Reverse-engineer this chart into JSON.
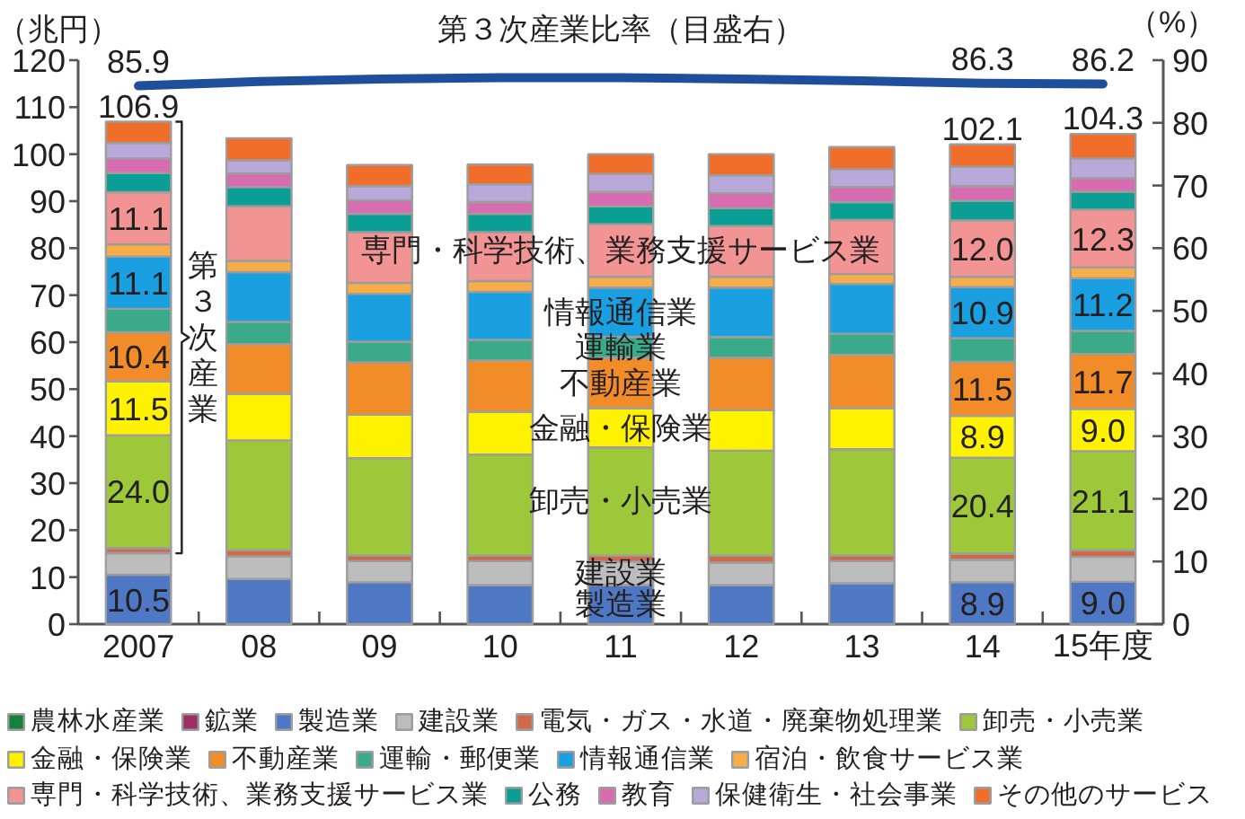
{
  "chart_data": {
    "type": "bar",
    "stacked": true,
    "categories": [
      "2007",
      "08",
      "09",
      "10",
      "11",
      "12",
      "13",
      "14",
      "15年度"
    ],
    "ylim": [
      0,
      120
    ],
    "yticks": [
      0,
      10,
      20,
      30,
      40,
      50,
      60,
      70,
      80,
      90,
      100,
      110,
      120
    ],
    "y2lim": [
      0,
      90
    ],
    "y2ticks": [
      0,
      10,
      20,
      30,
      40,
      50,
      60,
      70,
      80,
      90
    ],
    "ylabel": "（兆円）",
    "y2label": "（%）",
    "legend": "bottom",
    "series": [
      {
        "name": "農林水産業",
        "color": "#16803c",
        "values": [
          null,
          null,
          null,
          null,
          null,
          null,
          null,
          null,
          null
        ]
      },
      {
        "name": "鉱業",
        "color": "#9c2f66",
        "values": [
          null,
          null,
          null,
          null,
          null,
          null,
          null,
          null,
          null
        ]
      },
      {
        "name": "製造業",
        "color": "#4f78c4",
        "values": [
          10.5,
          9.6,
          8.9,
          8.3,
          8.3,
          8.3,
          8.7,
          8.9,
          9.0
        ],
        "value_labels": [
          "10.5",
          null,
          null,
          null,
          null,
          null,
          null,
          "8.9",
          "9.0"
        ]
      },
      {
        "name": "建設業",
        "color": "#bdbdbd",
        "values": [
          4.6,
          4.8,
          4.5,
          5.1,
          5.0,
          4.8,
          4.7,
          4.8,
          5.3
        ]
      },
      {
        "name": "電気・ガス・水道・廃棄物処理業",
        "color": "#d0684a",
        "values": [
          1.1,
          1.3,
          1.2,
          1.2,
          1.3,
          1.5,
          1.2,
          1.3,
          1.4
        ]
      },
      {
        "name": "卸売・小売業",
        "color": "#9cc83a",
        "values": [
          24.0,
          23.4,
          20.7,
          21.5,
          23.0,
          22.3,
          22.6,
          20.4,
          21.1
        ],
        "value_labels": [
          "24.0",
          null,
          null,
          null,
          null,
          null,
          null,
          "20.4",
          "21.1"
        ]
      },
      {
        "name": "金融・保険業",
        "color": "#fff200",
        "values": [
          11.5,
          9.9,
          9.3,
          9.1,
          8.3,
          8.6,
          8.7,
          8.9,
          9.0
        ],
        "value_labels": [
          "11.5",
          null,
          null,
          null,
          null,
          null,
          null,
          "8.9",
          "9.0"
        ]
      },
      {
        "name": "不動産業",
        "color": "#f28c28",
        "values": [
          10.4,
          10.6,
          11.1,
          10.9,
          10.8,
          11.2,
          11.4,
          11.5,
          11.7
        ],
        "value_labels": [
          "10.4",
          null,
          null,
          null,
          null,
          null,
          null,
          "11.5",
          "11.7"
        ]
      },
      {
        "name": "運輸・郵便業",
        "color": "#3aaa88",
        "values": [
          5.0,
          4.7,
          4.4,
          4.4,
          4.4,
          4.4,
          4.5,
          5.0,
          4.9
        ]
      },
      {
        "name": "情報通信業",
        "color": "#1aa0e0",
        "values": [
          11.1,
          10.6,
          10.2,
          10.2,
          10.5,
          10.5,
          10.6,
          10.9,
          11.2
        ],
        "value_labels": [
          "11.1",
          null,
          null,
          null,
          null,
          null,
          null,
          "10.9",
          "11.2"
        ]
      },
      {
        "name": "宿泊・飲食サービス業",
        "color": "#f7ae4a",
        "values": [
          2.6,
          2.4,
          2.3,
          2.3,
          2.3,
          2.3,
          2.1,
          2.2,
          2.3
        ]
      },
      {
        "name": "専門・科学技術、業務支援サービス業",
        "color": "#f29494",
        "values": [
          11.1,
          11.6,
          10.8,
          10.4,
          11.2,
          10.8,
          11.5,
          12.0,
          12.3
        ],
        "value_labels": [
          "11.1",
          null,
          null,
          null,
          null,
          null,
          null,
          "12.0",
          "12.3"
        ]
      },
      {
        "name": "公務",
        "color": "#0a9e94",
        "values": [
          4.1,
          4.1,
          3.9,
          3.9,
          3.8,
          3.8,
          3.8,
          4.2,
          3.8
        ]
      },
      {
        "name": "教育",
        "color": "#d86cb0",
        "values": [
          3.1,
          2.9,
          2.9,
          2.5,
          3.1,
          3.2,
          3.2,
          3.1,
          2.9
        ]
      },
      {
        "name": "保健衛生・社会事業",
        "color": "#b9a9da",
        "values": [
          3.3,
          2.8,
          3.0,
          3.8,
          3.8,
          3.8,
          3.8,
          4.1,
          4.2
        ]
      },
      {
        "name": "その他のサービス",
        "color": "#f06e2a",
        "values": [
          4.5,
          4.7,
          4.5,
          4.2,
          4.2,
          4.5,
          4.7,
          4.8,
          5.2
        ]
      },
      {
        "name": "第３次産業比率（目盛右）",
        "type": "line",
        "axis": "y2",
        "color": "#1f4e9c",
        "values": [
          85.9,
          86.6,
          87.0,
          87.2,
          87.2,
          87.0,
          86.7,
          86.3,
          86.2
        ],
        "value_labels": [
          "85.9",
          null,
          null,
          null,
          null,
          null,
          null,
          "86.3",
          "86.2"
        ]
      }
    ],
    "totals": [
      "106.9",
      null,
      null,
      null,
      null,
      null,
      null,
      "102.1",
      "104.3"
    ],
    "annotations": [
      "第３次産業",
      {
        "text": "専門・科学技術、業務支援サービス業",
        "x": "11",
        "y": 85.1
      },
      {
        "text": "情報通信業",
        "x": "11",
        "y": 71.6
      },
      {
        "text": "運輸業",
        "x": "11",
        "y": 61.1
      },
      {
        "text": "不動産業",
        "x": "11",
        "y": 56.7
      },
      {
        "text": "金融・保険業",
        "x": "11",
        "y": 45.9
      },
      {
        "text": "卸売・小売業",
        "x": "11",
        "y": 37.6
      },
      {
        "text": "建設業",
        "x": "11",
        "y": 13.3
      },
      {
        "text": "製造業",
        "x": "11",
        "y": 8.3
      }
    ]
  }
}
